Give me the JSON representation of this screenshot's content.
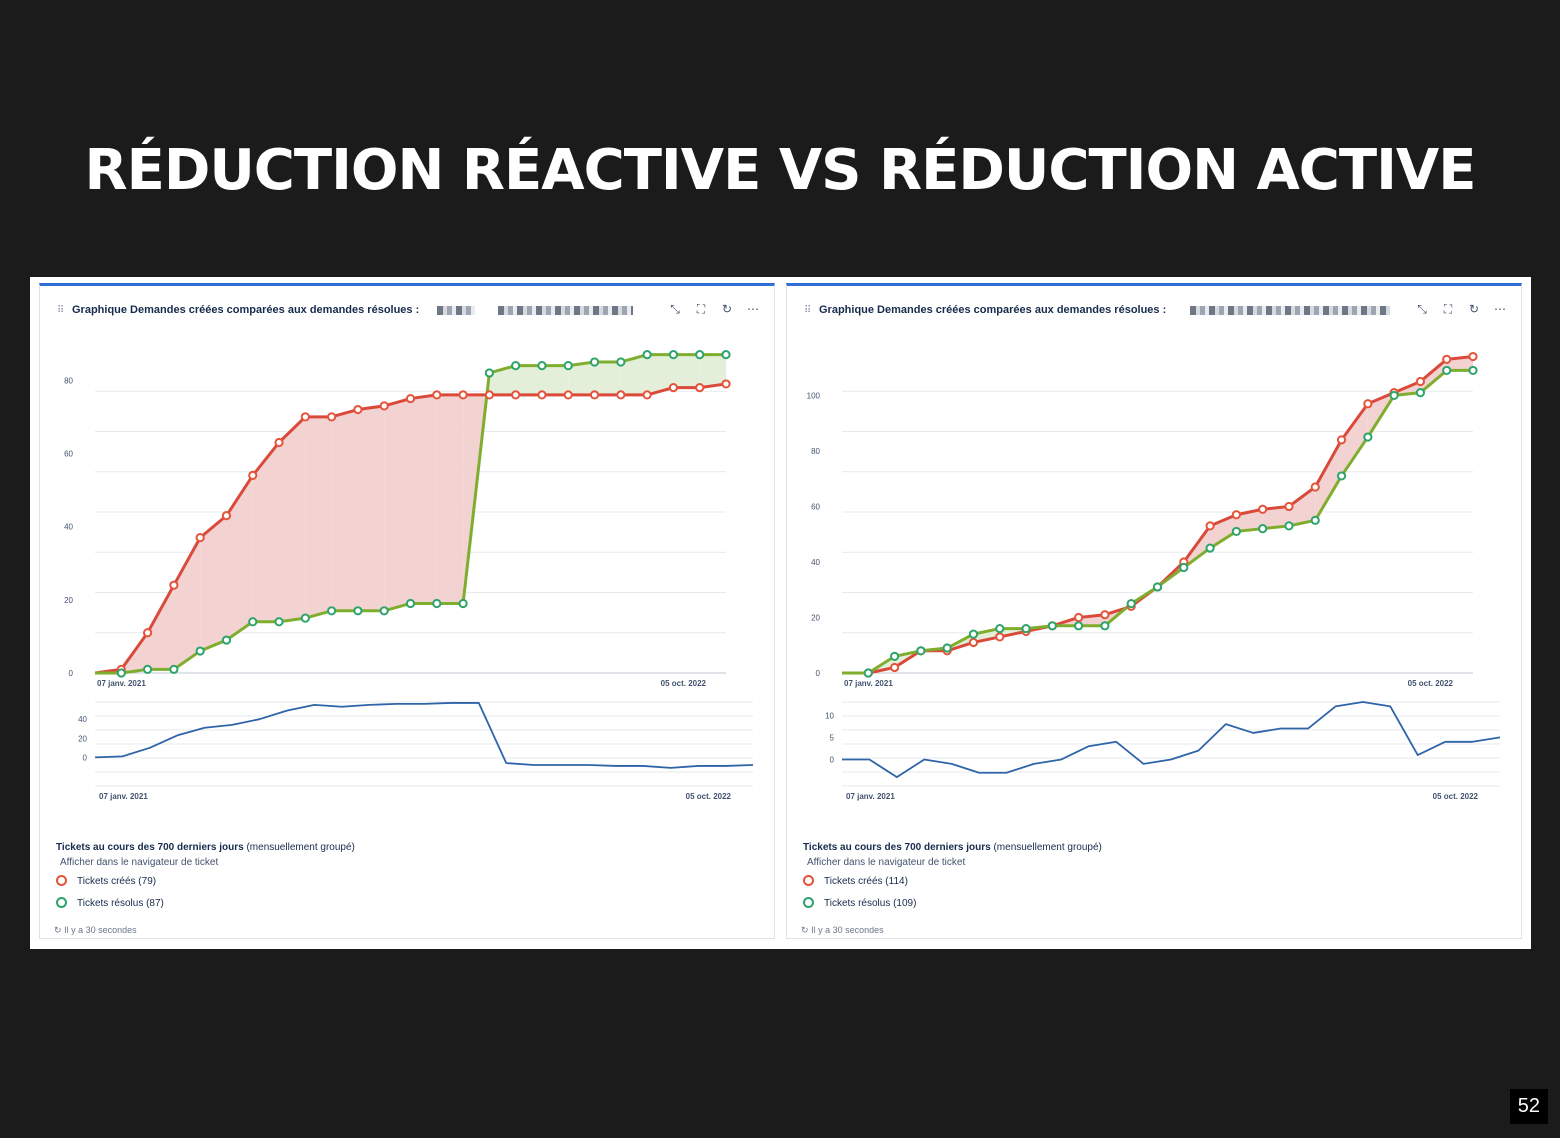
{
  "slide": {
    "title": "RÉDUCTION RÉACTIVE VS RÉDUCTION ACTIVE",
    "page_number": "52"
  },
  "colors": {
    "created": "#d94a3a",
    "resolved": "#7fae2f",
    "resolved_marker": "#2ea36b",
    "fill_created_above": "#f3d2d2",
    "fill_resolved_above": "#e4efd9",
    "difference_line": "#2f64a8",
    "header_accent": "#2f6fd6"
  },
  "panels": [
    {
      "title": "Graphique Demandes créées comparées aux demandes résolues :",
      "header_icons": [
        "collapse-icon",
        "fullscreen-icon",
        "refresh-icon",
        "more-icon"
      ],
      "legend": {
        "title_bold": "Tickets au cours des 700 derniers jours",
        "title_rest": " (mensuellement groupé)",
        "link": "Afficher dans le navigateur de ticket",
        "created": "Tickets créés (79)",
        "resolved": "Tickets résolus (87)"
      },
      "refresh_text": "Il y a 30 secondes"
    },
    {
      "title": "Graphique Demandes créées comparées aux demandes résolues :",
      "header_icons": [
        "collapse-icon",
        "fullscreen-icon",
        "refresh-icon",
        "more-icon"
      ],
      "legend": {
        "title_bold": "Tickets au cours des 700 derniers jours",
        "title_rest": " (mensuellement groupé)",
        "link": "Afficher dans le navigateur de ticket",
        "created": "Tickets créés (114)",
        "resolved": "Tickets résolus (109)"
      },
      "refresh_text": "Il y a 30 secondes"
    }
  ],
  "chart_data": [
    {
      "type": "area",
      "x_labels": [
        "07 janv. 2021",
        "05 oct. 2022"
      ],
      "y_ticks": [
        0,
        20,
        40,
        60,
        80
      ],
      "ylim": [
        0,
        88
      ],
      "grid": true,
      "series": [
        {
          "name": "Tickets créés",
          "values": [
            0,
            1,
            11,
            24,
            37,
            43,
            54,
            63,
            70,
            70,
            72,
            73,
            75,
            76,
            76,
            76,
            76,
            76,
            76,
            76,
            76,
            76,
            78,
            78,
            79
          ]
        },
        {
          "name": "Tickets résolus",
          "values": [
            0,
            0,
            1,
            1,
            6,
            9,
            14,
            14,
            15,
            17,
            17,
            17,
            19,
            19,
            19,
            82,
            84,
            84,
            84,
            85,
            85,
            87,
            87,
            87,
            87
          ]
        }
      ],
      "difference": {
        "y_ticks": [
          0,
          20,
          40
        ],
        "ylim": [
          -30,
          58
        ],
        "values": [
          0,
          1,
          10,
          23,
          31,
          34,
          40,
          49,
          55,
          53,
          55,
          56,
          56,
          57,
          57,
          -6,
          -8,
          -8,
          -8,
          -9,
          -9,
          -11,
          -9,
          -9,
          -8
        ]
      }
    },
    {
      "type": "area",
      "x_labels": [
        "07 janv. 2021",
        "05 oct. 2022"
      ],
      "y_ticks": [
        0,
        20,
        40,
        60,
        80,
        100
      ],
      "ylim": [
        0,
        116
      ],
      "grid": true,
      "series": [
        {
          "name": "Tickets créés",
          "values": [
            0,
            0,
            2,
            8,
            8,
            11,
            13,
            15,
            17,
            20,
            21,
            24,
            31,
            40,
            53,
            57,
            59,
            60,
            67,
            84,
            97,
            101,
            105,
            113,
            114
          ]
        },
        {
          "name": "Tickets résolus",
          "values": [
            0,
            0,
            6,
            8,
            9,
            14,
            16,
            16,
            17,
            17,
            17,
            25,
            31,
            38,
            45,
            51,
            52,
            53,
            55,
            71,
            85,
            100,
            101,
            109,
            109
          ]
        }
      ],
      "difference": {
        "y_ticks": [
          0,
          5,
          10
        ],
        "ylim": [
          -6,
          13
        ],
        "values": [
          0,
          0,
          -4,
          0,
          -1,
          -3,
          -3,
          -1,
          0,
          3,
          4,
          -1,
          0,
          2,
          8,
          6,
          7,
          7,
          12,
          13,
          12,
          1,
          4,
          4,
          5
        ]
      }
    }
  ]
}
